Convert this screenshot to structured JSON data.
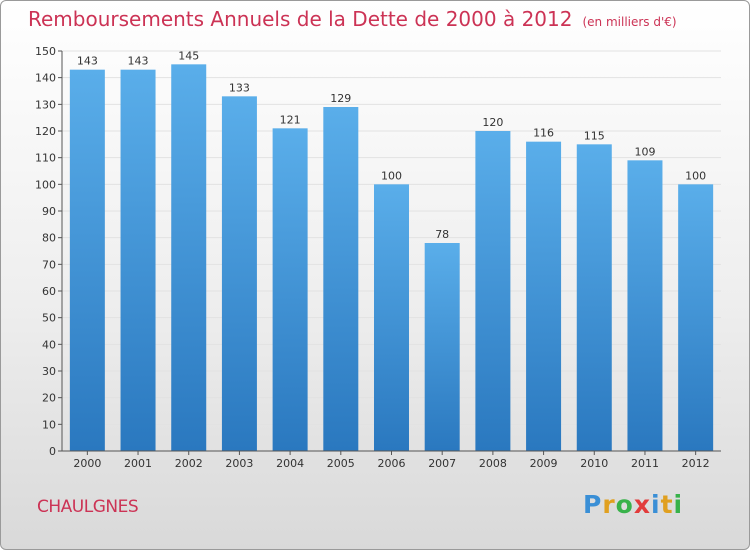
{
  "header": {
    "title": "Remboursements Annuels de la Dette de 2000 à 2012",
    "unit": "(en milliers d'€)"
  },
  "footer": {
    "city": "CHAULGNES",
    "logo_letters": [
      "P",
      "r",
      "o",
      "x",
      "i",
      "t",
      "i"
    ]
  },
  "colors": {
    "bar_top": "#5aaeea",
    "bar_bottom": "#2a78bf",
    "title": "#cc3355",
    "grid": "#e2e2e2"
  },
  "chart_data": {
    "type": "bar",
    "title": "Remboursements Annuels de la Dette de 2000 à 2012",
    "xlabel": "",
    "ylabel": "(en milliers d'€)",
    "categories": [
      "2000",
      "2001",
      "2002",
      "2003",
      "2004",
      "2005",
      "2006",
      "2007",
      "2008",
      "2009",
      "2010",
      "2011",
      "2012"
    ],
    "values": [
      143,
      143,
      145,
      133,
      121,
      129,
      100,
      78,
      120,
      116,
      115,
      109,
      100
    ],
    "ylim": [
      0,
      150
    ],
    "yticks": [
      0,
      10,
      20,
      30,
      40,
      50,
      60,
      70,
      80,
      90,
      100,
      110,
      120,
      130,
      140,
      150
    ],
    "grid": true
  }
}
